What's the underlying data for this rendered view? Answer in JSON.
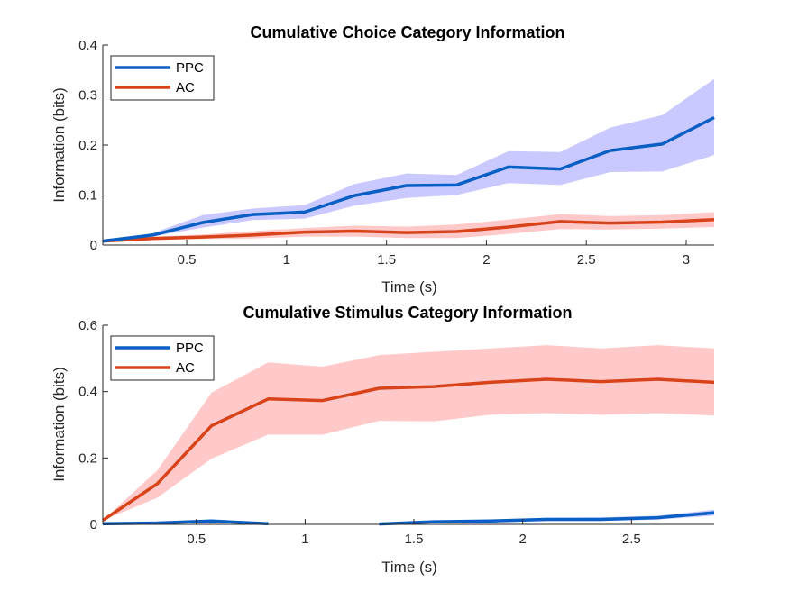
{
  "colors": {
    "PPC_line": "#0a5fc4",
    "PPC_band": "#c9c9ff",
    "AC_line": "#d9431a",
    "AC_band": "#ffc9c9",
    "axis": "#262626"
  },
  "chart_data": [
    {
      "type": "line",
      "title": "Cumulative Choice Category Information",
      "xlabel": "Time (s)",
      "ylabel": "Information (bits)",
      "xlim": [
        0.08,
        3.14
      ],
      "ylim": [
        0,
        0.4
      ],
      "xticks": [
        0.5,
        1,
        1.5,
        2,
        2.5,
        3
      ],
      "xtick_labels": [
        "0.5",
        "1",
        "1.5",
        "2",
        "2.5",
        "3"
      ],
      "yticks": [
        0,
        0.1,
        0.2,
        0.3,
        0.4
      ],
      "ytick_labels": [
        "0",
        "0.1",
        "0.2",
        "0.3",
        "0.4"
      ],
      "legend_position": "top-left",
      "x": [
        0.08,
        0.33,
        0.58,
        0.83,
        1.09,
        1.34,
        1.6,
        1.85,
        2.11,
        2.37,
        2.62,
        2.88,
        3.14
      ],
      "series": [
        {
          "name": "PPC",
          "values": [
            0.008,
            0.02,
            0.045,
            0.061,
            0.066,
            0.099,
            0.119,
            0.12,
            0.156,
            0.152,
            0.189,
            0.202,
            0.255
          ],
          "lower": [
            0.008,
            0.017,
            0.035,
            0.05,
            0.053,
            0.079,
            0.094,
            0.1,
            0.124,
            0.12,
            0.146,
            0.147,
            0.18
          ],
          "upper": [
            0.008,
            0.024,
            0.06,
            0.073,
            0.08,
            0.122,
            0.143,
            0.14,
            0.188,
            0.186,
            0.235,
            0.26,
            0.332
          ]
        },
        {
          "name": "AC",
          "values": [
            0.008,
            0.013,
            0.016,
            0.02,
            0.026,
            0.028,
            0.025,
            0.027,
            0.036,
            0.047,
            0.044,
            0.046,
            0.051
          ],
          "lower": [
            0.008,
            0.01,
            0.012,
            0.013,
            0.017,
            0.017,
            0.014,
            0.014,
            0.022,
            0.032,
            0.031,
            0.033,
            0.036
          ],
          "upper": [
            0.008,
            0.017,
            0.021,
            0.028,
            0.034,
            0.039,
            0.037,
            0.041,
            0.051,
            0.062,
            0.058,
            0.06,
            0.066
          ]
        }
      ]
    },
    {
      "type": "line",
      "title": "Cumulative Stimulus Category Information",
      "xlabel": "Time (s)",
      "ylabel": "Information (bits)",
      "xlim": [
        0.07,
        2.88
      ],
      "ylim": [
        0,
        0.6
      ],
      "xticks": [
        0.5,
        1,
        1.5,
        2,
        2.5
      ],
      "xtick_labels": [
        "0.5",
        "1",
        "1.5",
        "2",
        "2.5"
      ],
      "yticks": [
        0,
        0.2,
        0.4,
        0.6
      ],
      "ytick_labels": [
        "0",
        "0.2",
        "0.4",
        "0.6"
      ],
      "legend_position": "top-left",
      "x": [
        0.07,
        0.32,
        0.57,
        0.83,
        1.08,
        1.34,
        1.59,
        1.85,
        2.11,
        2.36,
        2.62,
        2.88
      ],
      "series": [
        {
          "name": "PPC",
          "values": [
            0.002,
            0.004,
            0.01,
            0.002,
            null,
            0.001,
            0.008,
            0.01,
            0.015,
            0.015,
            0.02,
            0.035
          ],
          "lower": [
            0.001,
            0.002,
            0.006,
            0.001,
            null,
            0.0,
            0.005,
            0.006,
            0.01,
            0.01,
            0.014,
            0.026
          ],
          "upper": [
            0.003,
            0.006,
            0.014,
            0.003,
            null,
            0.002,
            0.011,
            0.014,
            0.02,
            0.021,
            0.026,
            0.044
          ]
        },
        {
          "name": "AC",
          "values": [
            0.012,
            0.122,
            0.297,
            0.378,
            0.373,
            0.41,
            0.415,
            0.428,
            0.437,
            0.43,
            0.437,
            0.428
          ],
          "lower": [
            0.012,
            0.08,
            0.198,
            0.27,
            0.27,
            0.312,
            0.31,
            0.33,
            0.335,
            0.33,
            0.335,
            0.328
          ],
          "upper": [
            0.012,
            0.162,
            0.397,
            0.488,
            0.475,
            0.51,
            0.52,
            0.53,
            0.54,
            0.53,
            0.54,
            0.53
          ]
        }
      ]
    }
  ]
}
